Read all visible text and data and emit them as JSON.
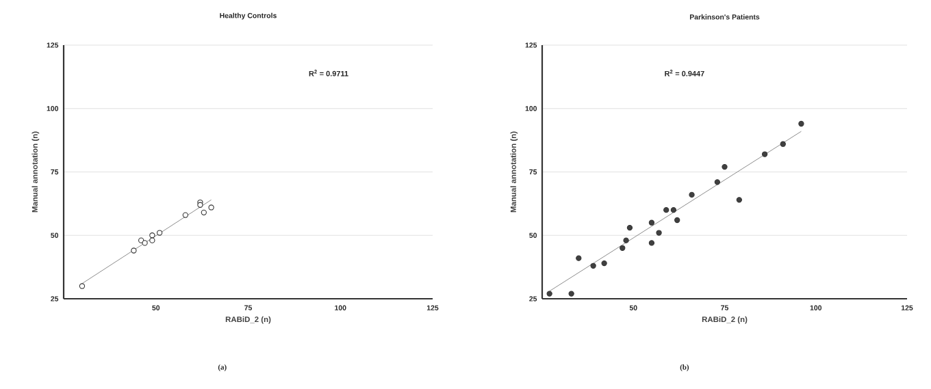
{
  "chart_data": [
    {
      "type": "scatter",
      "title": "Healthy Controls",
      "xlabel": "RABiD_2 (n)",
      "ylabel": "Manual annotation (n)",
      "xlim": [
        25,
        125
      ],
      "ylim": [
        25,
        125
      ],
      "xticks": [
        50,
        75,
        100,
        125
      ],
      "yticks": [
        25,
        50,
        75,
        100,
        125
      ],
      "grid": "y",
      "series": [
        {
          "marker": "circle",
          "color": "#ffffff",
          "x": [
            30,
            44,
            46,
            47,
            49,
            49,
            51,
            58,
            62,
            62,
            63,
            65
          ],
          "values": [
            30,
            44,
            48,
            47,
            50,
            48,
            51,
            58,
            63,
            62,
            59,
            61
          ]
        },
        {
          "type": "line",
          "color": "#808080",
          "x": [
            30,
            65
          ],
          "values": [
            31,
            64
          ]
        }
      ],
      "annotations": [
        "R$^{2}$ = 0.9711",
        "(a)"
      ]
    },
    {
      "type": "scatter",
      "title": "Parkinson's Patients",
      "xlabel": "RABiD_2 (n)",
      "ylabel": "Manual annotation (n)",
      "xlim": [
        25,
        125
      ],
      "ylim": [
        25,
        125
      ],
      "xticks": [
        50,
        75,
        100,
        125
      ],
      "yticks": [
        25,
        50,
        75,
        100,
        125
      ],
      "grid": "y",
      "series": [
        {
          "marker": "circle",
          "color": "#404040",
          "x": [
            27,
            33,
            35,
            39,
            42,
            47,
            48,
            49,
            55,
            55,
            57,
            59,
            61,
            62,
            66,
            73,
            75,
            79,
            86,
            91,
            96
          ],
          "values": [
            27,
            27,
            41,
            38,
            39,
            45,
            48,
            53,
            47,
            55,
            51,
            60,
            60,
            56,
            66,
            71,
            77,
            64,
            82,
            86,
            94
          ]
        },
        {
          "type": "line",
          "color": "#808080",
          "x": [
            27,
            96
          ],
          "values": [
            28,
            91
          ]
        }
      ],
      "annotations": [
        "R$^{2}$ = 0.9447",
        "(b)"
      ]
    }
  ]
}
